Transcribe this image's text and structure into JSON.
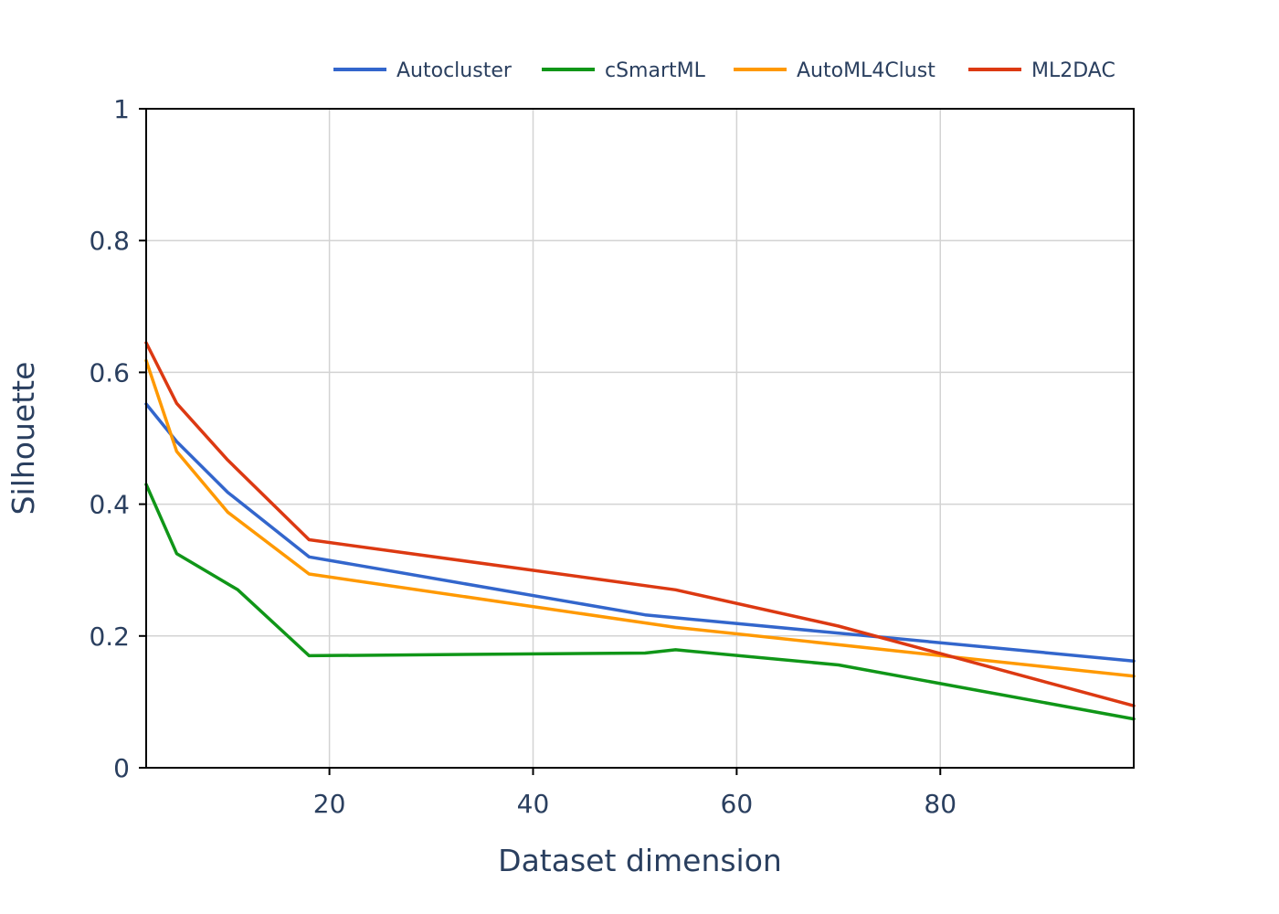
{
  "chart_data": {
    "type": "line",
    "title": "",
    "xlabel": "Dataset dimension",
    "ylabel": "Silhouette",
    "xlim": [
      2,
      99
    ],
    "ylim": [
      0,
      1
    ],
    "xticks": [
      20,
      40,
      60,
      80
    ],
    "yticks": [
      0,
      0.2,
      0.4,
      0.6,
      0.8,
      1
    ],
    "ytick_labels": [
      "0",
      "0.2",
      "0.4",
      "0.6",
      "0.8",
      "1"
    ],
    "grid": true,
    "legend_position": "top",
    "series": [
      {
        "name": "Autocluster",
        "color": "#3366cc",
        "x": [
          2,
          5,
          10,
          18,
          51,
          99
        ],
        "y": [
          0.552,
          0.495,
          0.418,
          0.32,
          0.232,
          0.162
        ]
      },
      {
        "name": "cSmartML",
        "color": "#109618",
        "x": [
          2,
          5,
          11,
          18,
          51,
          54,
          70,
          99
        ],
        "y": [
          0.43,
          0.325,
          0.27,
          0.17,
          0.174,
          0.179,
          0.156,
          0.074
        ]
      },
      {
        "name": "AutoML4Clust",
        "color": "#ff9900",
        "x": [
          2,
          5,
          10,
          18,
          54,
          99
        ],
        "y": [
          0.618,
          0.48,
          0.388,
          0.294,
          0.213,
          0.139
        ]
      },
      {
        "name": "ML2DAC",
        "color": "#dc3912",
        "x": [
          2,
          5,
          10,
          18,
          54,
          70,
          99
        ],
        "y": [
          0.645,
          0.553,
          0.467,
          0.346,
          0.27,
          0.215,
          0.094
        ]
      }
    ]
  }
}
